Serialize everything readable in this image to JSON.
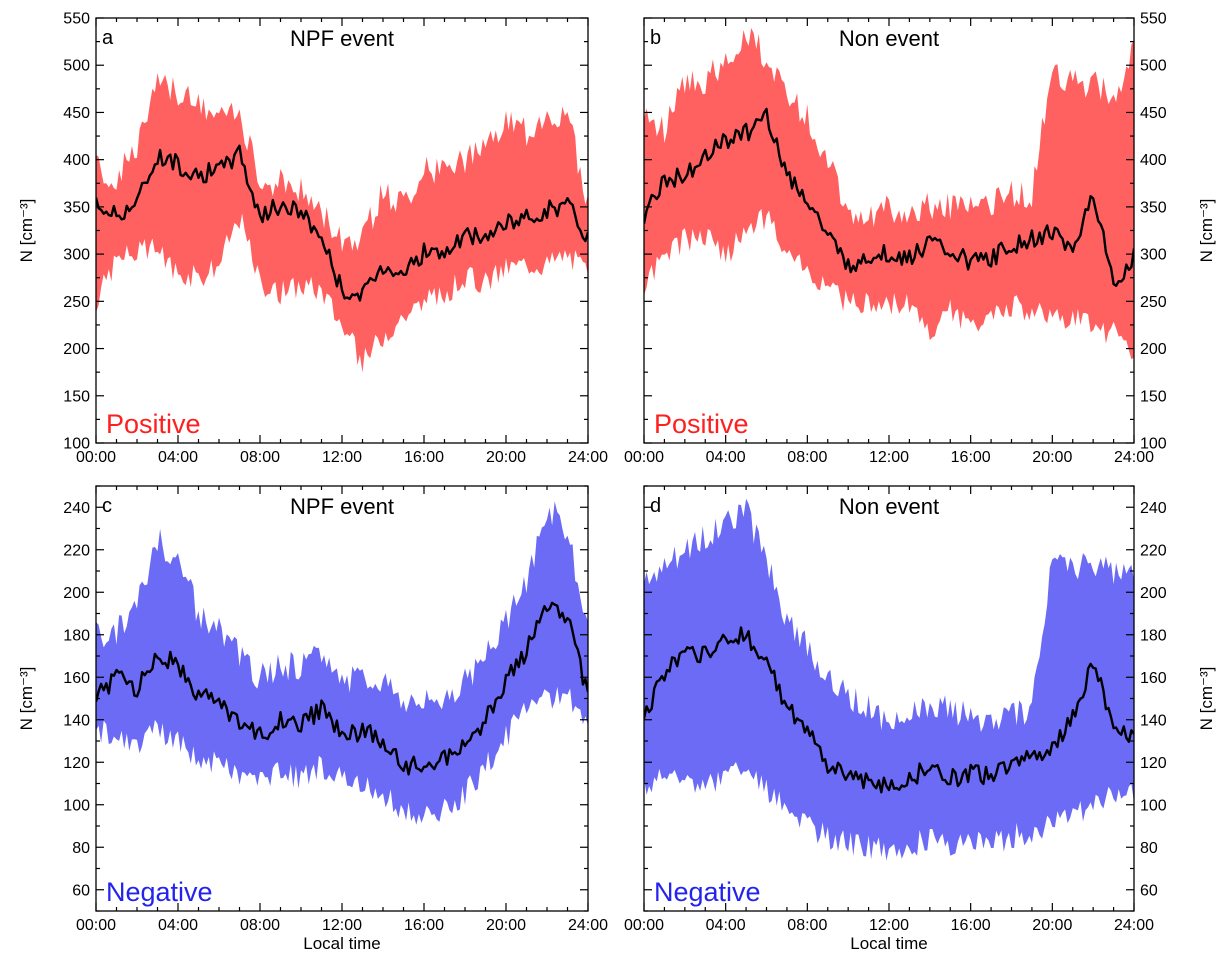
{
  "colors": {
    "positive": "#ff6161",
    "negative": "#6b6bf6",
    "mean_line": "#000000",
    "positive_text": "#ff1f1f",
    "negative_text": "#2323ee"
  },
  "chart_data": [
    {
      "id": "a",
      "type": "area",
      "letter": "a",
      "title": "NPF event",
      "polarity": "Positive",
      "polarity_color": "positive",
      "ylabel": "N [cm⁻³]",
      "xlabel": "",
      "ylim": [
        100,
        550
      ],
      "yticks": [
        100,
        150,
        200,
        250,
        300,
        350,
        400,
        450,
        500,
        550
      ],
      "xlim": [
        0,
        24
      ],
      "xtick_labels": [
        "00:00",
        "04:00",
        "08:00",
        "12:00",
        "16:00",
        "20:00",
        "24:00"
      ],
      "x": [
        0,
        1,
        2,
        3,
        4,
        5,
        6,
        7,
        8,
        9,
        10,
        11,
        12,
        13,
        14,
        15,
        16,
        17,
        18,
        19,
        20,
        21,
        22,
        23,
        24
      ],
      "mean": [
        352,
        342,
        355,
        405,
        395,
        385,
        388,
        408,
        340,
        352,
        345,
        318,
        262,
        255,
        288,
        282,
        302,
        300,
        318,
        318,
        332,
        338,
        348,
        352,
        318
      ],
      "upper": [
        392,
        378,
        415,
        478,
        470,
        458,
        445,
        448,
        375,
        375,
        368,
        345,
        318,
        318,
        365,
        355,
        388,
        390,
        400,
        408,
        440,
        428,
        450,
        445,
        355
      ],
      "lower": [
        250,
        295,
        302,
        305,
        280,
        275,
        290,
        340,
        270,
        258,
        268,
        262,
        225,
        185,
        215,
        235,
        248,
        258,
        275,
        270,
        285,
        290,
        290,
        300,
        280
      ]
    },
    {
      "id": "b",
      "type": "area",
      "letter": "b",
      "title": "Non event",
      "polarity": "Positive",
      "polarity_color": "positive",
      "ylabel": "N [cm⁻³]",
      "xlabel": "",
      "ylim": [
        100,
        550
      ],
      "yticks": [
        100,
        150,
        200,
        250,
        300,
        350,
        400,
        450,
        500,
        550
      ],
      "xlim": [
        0,
        24
      ],
      "xtick_labels": [
        "00:00",
        "04:00",
        "08:00",
        "12:00",
        "16:00",
        "20:00",
        "24:00"
      ],
      "x": [
        0,
        1,
        2,
        3,
        4,
        5,
        6,
        7,
        8,
        9,
        10,
        11,
        12,
        13,
        14,
        15,
        16,
        17,
        18,
        19,
        20,
        21,
        22,
        23,
        24
      ],
      "mean": [
        340,
        380,
        382,
        408,
        420,
        428,
        448,
        385,
        358,
        318,
        288,
        298,
        300,
        296,
        312,
        302,
        292,
        295,
        310,
        315,
        325,
        300,
        368,
        265,
        300
      ],
      "upper": [
        445,
        430,
        480,
        485,
        500,
        535,
        510,
        470,
        445,
        400,
        345,
        342,
        348,
        345,
        350,
        350,
        350,
        355,
        362,
        365,
        495,
        480,
        480,
        470,
        515
      ],
      "lower": [
        262,
        300,
        315,
        320,
        300,
        320,
        340,
        300,
        280,
        262,
        250,
        250,
        248,
        245,
        215,
        240,
        225,
        240,
        245,
        240,
        235,
        230,
        225,
        215,
        195
      ]
    },
    {
      "id": "c",
      "type": "area",
      "letter": "c",
      "title": "NPF event",
      "polarity": "Negative",
      "polarity_color": "negative",
      "ylabel": "N [cm⁻³]",
      "xlabel": "Local time",
      "ylim": [
        50,
        250
      ],
      "yticks": [
        60,
        80,
        100,
        120,
        140,
        160,
        180,
        200,
        220,
        240
      ],
      "xlim": [
        0,
        24
      ],
      "xtick_labels": [
        "00:00",
        "04:00",
        "08:00",
        "12:00",
        "16:00",
        "20:00",
        "24:00"
      ],
      "x": [
        0,
        1,
        2,
        3,
        4,
        5,
        6,
        7,
        8,
        9,
        10,
        11,
        12,
        13,
        14,
        15,
        16,
        17,
        18,
        19,
        20,
        21,
        22,
        23,
        24
      ],
      "mean": [
        150,
        160,
        155,
        172,
        165,
        152,
        148,
        140,
        132,
        140,
        138,
        145,
        132,
        135,
        130,
        118,
        120,
        122,
        128,
        140,
        158,
        172,
        195,
        188,
        150
      ],
      "upper": [
        180,
        182,
        195,
        225,
        215,
        190,
        182,
        170,
        160,
        165,
        165,
        172,
        160,
        158,
        160,
        150,
        148,
        152,
        158,
        170,
        185,
        205,
        240,
        230,
        180
      ],
      "lower": [
        135,
        132,
        128,
        135,
        130,
        122,
        120,
        115,
        112,
        115,
        112,
        118,
        112,
        108,
        105,
        98,
        95,
        98,
        105,
        118,
        132,
        145,
        150,
        150,
        140
      ]
    },
    {
      "id": "d",
      "type": "area",
      "letter": "d",
      "title": "Non event",
      "polarity": "Negative",
      "polarity_color": "negative",
      "ylabel": "N [cm⁻³]",
      "xlabel": "Local time",
      "ylim": [
        50,
        250
      ],
      "yticks": [
        60,
        80,
        100,
        120,
        140,
        160,
        180,
        200,
        220,
        240
      ],
      "xlim": [
        0,
        24
      ],
      "xtick_labels": [
        "00:00",
        "04:00",
        "08:00",
        "12:00",
        "16:00",
        "20:00",
        "24:00"
      ],
      "x": [
        0,
        1,
        2,
        3,
        4,
        5,
        6,
        7,
        8,
        9,
        10,
        11,
        12,
        13,
        14,
        15,
        16,
        17,
        18,
        19,
        20,
        21,
        22,
        23,
        24
      ],
      "mean": [
        140,
        162,
        170,
        172,
        178,
        180,
        168,
        145,
        135,
        118,
        115,
        110,
        108,
        112,
        118,
        112,
        115,
        113,
        118,
        122,
        128,
        140,
        168,
        138,
        130
      ],
      "upper": [
        205,
        210,
        220,
        225,
        235,
        238,
        215,
        185,
        175,
        160,
        150,
        145,
        140,
        140,
        148,
        145,
        142,
        140,
        142,
        145,
        215,
        212,
        212,
        210,
        212
      ],
      "lower": [
        110,
        115,
        112,
        108,
        115,
        118,
        108,
        98,
        90,
        85,
        82,
        80,
        78,
        80,
        85,
        82,
        85,
        82,
        85,
        88,
        90,
        95,
        100,
        105,
        105
      ]
    }
  ]
}
